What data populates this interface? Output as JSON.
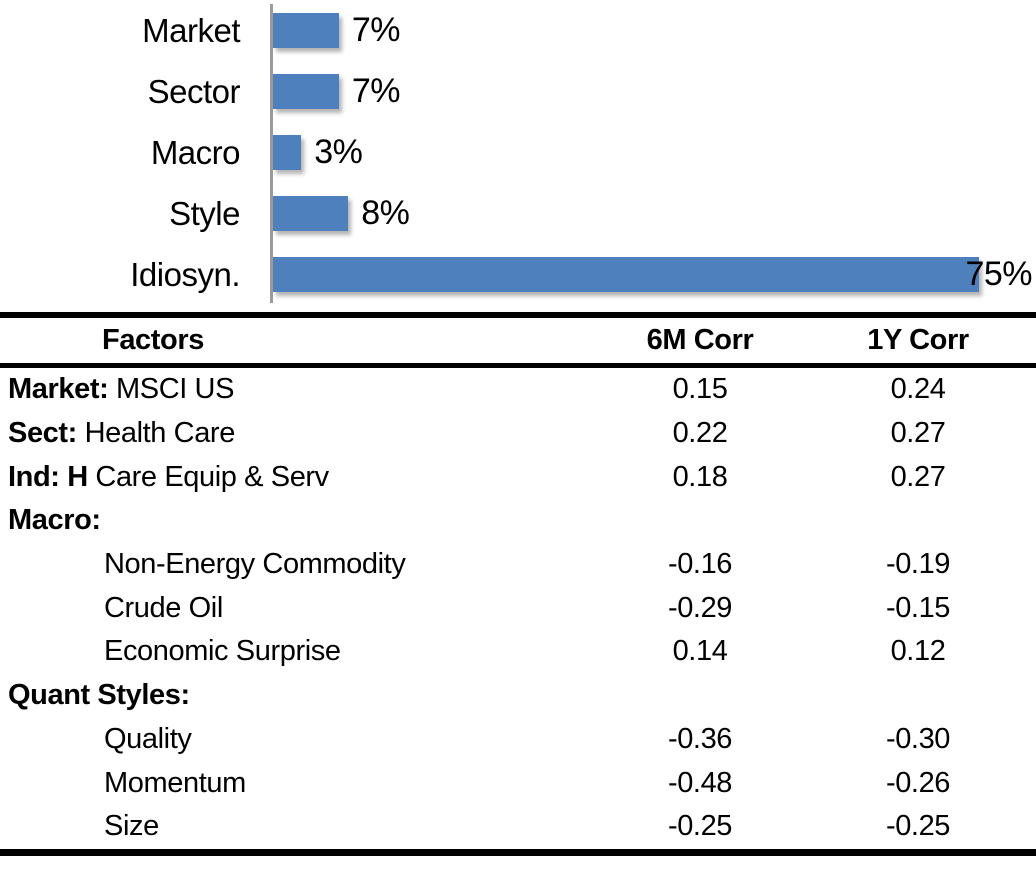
{
  "chart_data": [
    {
      "type": "bar",
      "orientation": "horizontal",
      "title": "",
      "xlabel": "",
      "ylabel": "",
      "categories": [
        "Market",
        "Sector",
        "Macro",
        "Style",
        "Idiosyn."
      ],
      "values": [
        7,
        7,
        3,
        8,
        75
      ],
      "value_labels": [
        "7%",
        "7%",
        "3%",
        "8%",
        "75%"
      ],
      "unit": "percent",
      "xlim": [
        0,
        80
      ],
      "grid": false,
      "legend": false,
      "bar_color": "#4e80bd",
      "axis_color": "#9b9b9b"
    },
    {
      "type": "table",
      "title": "",
      "columns": [
        "Factors",
        "6M Corr",
        "1Y Corr"
      ],
      "rows": [
        {
          "factor_bold": "Market:",
          "factor_rest": " MSCI US",
          "indent": false,
          "corr_6m": "0.15",
          "corr_1y": "0.24"
        },
        {
          "factor_bold": "Sect:",
          "factor_rest": " Health Care",
          "indent": false,
          "corr_6m": "0.22",
          "corr_1y": "0.27"
        },
        {
          "factor_bold": "Ind: H",
          "factor_rest": " Care Equip & Serv",
          "indent": false,
          "corr_6m": "0.18",
          "corr_1y": "0.27"
        },
        {
          "factor_bold": "Macro:",
          "factor_rest": "",
          "indent": false,
          "corr_6m": "",
          "corr_1y": ""
        },
        {
          "factor_bold": "",
          "factor_rest": "Non-Energy Commodity",
          "indent": true,
          "corr_6m": "-0.16",
          "corr_1y": "-0.19"
        },
        {
          "factor_bold": "",
          "factor_rest": "Crude Oil",
          "indent": true,
          "corr_6m": "-0.29",
          "corr_1y": "-0.15"
        },
        {
          "factor_bold": "",
          "factor_rest": "Economic Surprise",
          "indent": true,
          "corr_6m": "0.14",
          "corr_1y": "0.12"
        },
        {
          "factor_bold": "Quant Styles:",
          "factor_rest": "",
          "indent": false,
          "corr_6m": "",
          "corr_1y": ""
        },
        {
          "factor_bold": "",
          "factor_rest": "Quality",
          "indent": true,
          "corr_6m": "-0.36",
          "corr_1y": "-0.30"
        },
        {
          "factor_bold": "",
          "factor_rest": "Momentum",
          "indent": true,
          "corr_6m": "-0.48",
          "corr_1y": "-0.26"
        },
        {
          "factor_bold": "",
          "factor_rest": "Size",
          "indent": true,
          "corr_6m": "-0.25",
          "corr_1y": "-0.25"
        }
      ]
    }
  ],
  "colors": {
    "bar_blue": "#4e80bd",
    "axis_gray": "#9b9b9b",
    "text": "#000000"
  }
}
